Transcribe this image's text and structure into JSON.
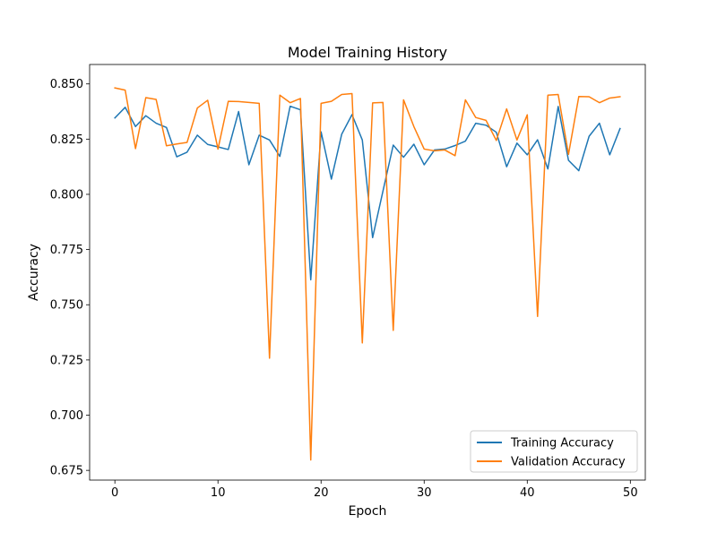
{
  "chart_data": {
    "type": "line",
    "title": "Model Training History",
    "xlabel": "Epoch",
    "ylabel": "Accuracy",
    "xlim": [
      -2.45,
      51.45
    ],
    "ylim": [
      0.6706,
      0.8588
    ],
    "x_ticks": [
      0,
      10,
      20,
      30,
      40,
      50
    ],
    "y_ticks": [
      0.675,
      0.7,
      0.725,
      0.75,
      0.775,
      0.8,
      0.825,
      0.85
    ],
    "x_tick_labels": [
      "0",
      "10",
      "20",
      "30",
      "40",
      "50"
    ],
    "y_tick_labels": [
      "0.675",
      "0.700",
      "0.725",
      "0.750",
      "0.775",
      "0.800",
      "0.825",
      "0.850"
    ],
    "grid": false,
    "legend_position": "lower right",
    "x": [
      0,
      1,
      2,
      3,
      4,
      5,
      6,
      7,
      8,
      9,
      10,
      11,
      12,
      13,
      14,
      15,
      16,
      17,
      18,
      19,
      20,
      21,
      22,
      23,
      24,
      25,
      26,
      27,
      28,
      29,
      30,
      31,
      32,
      33,
      34,
      35,
      36,
      37,
      38,
      39,
      40,
      41,
      42,
      43,
      44,
      45,
      46,
      47,
      48,
      49
    ],
    "series": [
      {
        "name": "Training Accuracy",
        "color": "#1f77b4",
        "values": [
          0.8346,
          0.8394,
          0.8307,
          0.8356,
          0.8322,
          0.8303,
          0.817,
          0.8191,
          0.8268,
          0.8226,
          0.8215,
          0.8203,
          0.8375,
          0.8134,
          0.8268,
          0.8246,
          0.8172,
          0.8399,
          0.8383,
          0.7613,
          0.8283,
          0.8069,
          0.8272,
          0.8361,
          0.8246,
          0.7804,
          0.8014,
          0.8223,
          0.8168,
          0.8227,
          0.8134,
          0.8201,
          0.8205,
          0.8221,
          0.8241,
          0.8322,
          0.8313,
          0.8281,
          0.8125,
          0.8232,
          0.8179,
          0.8247,
          0.8115,
          0.8398,
          0.8154,
          0.8107,
          0.8263,
          0.8322,
          0.8179,
          0.8298
        ]
      },
      {
        "name": "Validation Accuracy",
        "color": "#ff7f0e",
        "values": [
          0.8482,
          0.8472,
          0.8207,
          0.8438,
          0.843,
          0.822,
          0.8228,
          0.8235,
          0.8391,
          0.8426,
          0.8205,
          0.8421,
          0.842,
          0.8416,
          0.8412,
          0.7258,
          0.8449,
          0.8415,
          0.8434,
          0.6797,
          0.8412,
          0.8421,
          0.8452,
          0.8456,
          0.7327,
          0.8414,
          0.8416,
          0.7384,
          0.8428,
          0.8307,
          0.8205,
          0.8197,
          0.8201,
          0.8175,
          0.8428,
          0.8348,
          0.8335,
          0.8244,
          0.8387,
          0.8246,
          0.836,
          0.7447,
          0.8449,
          0.8452,
          0.8181,
          0.8443,
          0.8442,
          0.8415,
          0.8436,
          0.8442
        ]
      }
    ]
  }
}
